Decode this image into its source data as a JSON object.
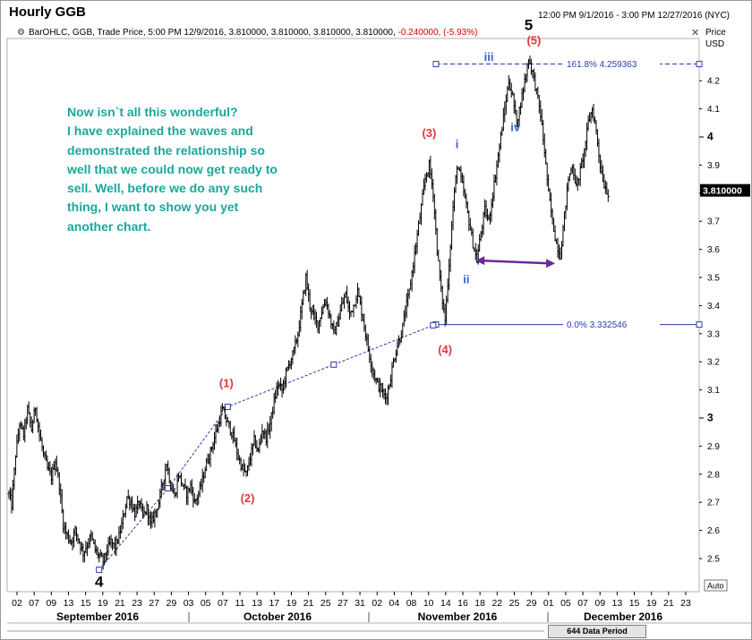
{
  "header": {
    "title": "Hourly GGB",
    "date_range": "12:00 PM 9/1/2016 - 3:00 PM 12/27/2016 (NYC)",
    "settings_icon": "gear-icon",
    "close_icon": "close-icon",
    "info_text": "BarOHLC, GGB, Trade Price, 5:00 PM 12/9/2016, 3.810000, 3.810000, 3.810000, 3.810000,",
    "info_change": "-0.240000, (-5.93%)",
    "price_axis_title": "Price",
    "price_axis_unit": "USD"
  },
  "commentary": {
    "lines": [
      "Now isn`t all this wonderful?",
      "I have explained the waves and",
      "demonstrated the relationship so",
      "well that we could now get ready to",
      "sell.  Well, before we do any such",
      "thing, I want to show you yet",
      "another chart."
    ]
  },
  "footer": {
    "data_period": "644 Data Period",
    "auto_label": "Auto"
  },
  "colors": {
    "bars": "#000000",
    "wave_red": "#e0383b",
    "wave_blue": "#3a5fc8",
    "fib": "#2b3bb0",
    "commentary": "#1aa89a",
    "arrow": "#6a2a9a"
  },
  "chart_data": {
    "type": "bar",
    "subtype": "OHLC",
    "symbol": "GGB",
    "timeframe": "Hourly",
    "ylim": [
      2.36,
      4.33
    ],
    "y_ticks": [
      2.5,
      2.6,
      2.7,
      2.8,
      2.9,
      3,
      3.1,
      3.2,
      3.3,
      3.4,
      3.5,
      3.6,
      3.7,
      3.8,
      3.9,
      4,
      4.1,
      4.2
    ],
    "y_tick_labels": [
      "2.5",
      "2.6",
      "2.7",
      "2.8",
      "2.9",
      "3",
      "3.1",
      "3.2",
      "3.3",
      "3.4",
      "3.5",
      "3.6",
      "3.7",
      "3.8",
      "3.9",
      "4",
      "4.1",
      "4.2"
    ],
    "x_day_labels": [
      "02",
      "07",
      "09",
      "13",
      "15",
      "19",
      "21",
      "23",
      "27",
      "29",
      "03",
      "05",
      "07",
      "11",
      "13",
      "17",
      "19",
      "21",
      "25",
      "27",
      "31",
      "02",
      "04",
      "08",
      "10",
      "14",
      "16",
      "18",
      "22",
      "25",
      "29",
      "01",
      "05",
      "07",
      "09",
      "13",
      "15",
      "19",
      "21",
      "23"
    ],
    "x_month_labels": [
      "September 2016",
      "October 2016",
      "November 2016",
      "December 2016"
    ],
    "last_price": 3.81,
    "last_price_label": "3.810000",
    "price_path": [
      [
        0,
        2.73
      ],
      [
        2,
        2.69
      ],
      [
        5,
        2.87
      ],
      [
        8,
        2.98
      ],
      [
        11,
        2.94
      ],
      [
        14,
        3.03
      ],
      [
        17,
        2.96
      ],
      [
        20,
        3.04
      ],
      [
        23,
        2.94
      ],
      [
        26,
        2.87
      ],
      [
        29,
        2.82
      ],
      [
        32,
        2.79
      ],
      [
        35,
        2.85
      ],
      [
        38,
        2.76
      ],
      [
        41,
        2.62
      ],
      [
        44,
        2.58
      ],
      [
        47,
        2.56
      ],
      [
        50,
        2.6
      ],
      [
        53,
        2.56
      ],
      [
        56,
        2.52
      ],
      [
        59,
        2.55
      ],
      [
        62,
        2.58
      ],
      [
        65,
        2.53
      ],
      [
        68,
        2.51
      ],
      [
        71,
        2.49
      ],
      [
        74,
        2.53
      ],
      [
        77,
        2.56
      ],
      [
        80,
        2.54
      ],
      [
        83,
        2.58
      ],
      [
        86,
        2.64
      ],
      [
        89,
        2.72
      ],
      [
        92,
        2.7
      ],
      [
        95,
        2.66
      ],
      [
        98,
        2.7
      ],
      [
        101,
        2.65
      ],
      [
        104,
        2.68
      ],
      [
        107,
        2.62
      ],
      [
        110,
        2.66
      ],
      [
        113,
        2.7
      ],
      [
        116,
        2.77
      ],
      [
        119,
        2.84
      ],
      [
        122,
        2.76
      ],
      [
        125,
        2.72
      ],
      [
        128,
        2.8
      ],
      [
        131,
        2.76
      ],
      [
        134,
        2.73
      ],
      [
        137,
        2.76
      ],
      [
        140,
        2.7
      ],
      [
        143,
        2.73
      ],
      [
        146,
        2.78
      ],
      [
        149,
        2.84
      ],
      [
        152,
        2.88
      ],
      [
        155,
        2.93
      ],
      [
        158,
        2.98
      ],
      [
        161,
        3.03
      ],
      [
        164,
        2.99
      ],
      [
        167,
        2.96
      ],
      [
        170,
        2.92
      ],
      [
        173,
        2.86
      ],
      [
        176,
        2.82
      ],
      [
        179,
        2.8
      ],
      [
        182,
        2.86
      ],
      [
        185,
        2.92
      ],
      [
        188,
        2.88
      ],
      [
        191,
        2.96
      ],
      [
        194,
        2.93
      ],
      [
        197,
        2.98
      ],
      [
        200,
        3.06
      ],
      [
        203,
        3.12
      ],
      [
        206,
        3.1
      ],
      [
        209,
        3.16
      ],
      [
        212,
        3.2
      ],
      [
        215,
        3.24
      ],
      [
        218,
        3.3
      ],
      [
        221,
        3.4
      ],
      [
        224,
        3.5
      ],
      [
        227,
        3.4
      ],
      [
        230,
        3.36
      ],
      [
        233,
        3.33
      ],
      [
        236,
        3.38
      ],
      [
        239,
        3.42
      ],
      [
        242,
        3.36
      ],
      [
        245,
        3.3
      ],
      [
        248,
        3.34
      ],
      [
        251,
        3.4
      ],
      [
        254,
        3.44
      ],
      [
        257,
        3.37
      ],
      [
        260,
        3.4
      ],
      [
        263,
        3.45
      ],
      [
        266,
        3.38
      ],
      [
        269,
        3.3
      ],
      [
        272,
        3.22
      ],
      [
        275,
        3.16
      ],
      [
        278,
        3.12
      ],
      [
        281,
        3.1
      ],
      [
        284,
        3.07
      ],
      [
        287,
        3.12
      ],
      [
        290,
        3.2
      ],
      [
        293,
        3.26
      ],
      [
        296,
        3.3
      ],
      [
        299,
        3.38
      ],
      [
        302,
        3.45
      ],
      [
        305,
        3.55
      ],
      [
        308,
        3.65
      ],
      [
        311,
        3.75
      ],
      [
        314,
        3.85
      ],
      [
        317,
        3.9
      ],
      [
        320,
        3.8
      ],
      [
        323,
        3.6
      ],
      [
        326,
        3.45
      ],
      [
        329,
        3.35
      ],
      [
        332,
        3.55
      ],
      [
        335,
        3.75
      ],
      [
        338,
        3.9
      ],
      [
        341,
        3.85
      ],
      [
        344,
        3.78
      ],
      [
        347,
        3.7
      ],
      [
        350,
        3.62
      ],
      [
        353,
        3.56
      ],
      [
        356,
        3.66
      ],
      [
        359,
        3.74
      ],
      [
        362,
        3.7
      ],
      [
        365,
        3.8
      ],
      [
        368,
        3.9
      ],
      [
        371,
        4.0
      ],
      [
        374,
        4.1
      ],
      [
        377,
        4.2
      ],
      [
        380,
        4.14
      ],
      [
        383,
        4.05
      ],
      [
        386,
        4.12
      ],
      [
        389,
        4.2
      ],
      [
        392,
        4.28
      ],
      [
        395,
        4.23
      ],
      [
        398,
        4.16
      ],
      [
        401,
        4.08
      ],
      [
        404,
        3.95
      ],
      [
        407,
        3.8
      ],
      [
        410,
        3.7
      ],
      [
        413,
        3.62
      ],
      [
        416,
        3.58
      ],
      [
        419,
        3.72
      ],
      [
        422,
        3.85
      ],
      [
        425,
        3.9
      ],
      [
        428,
        3.82
      ],
      [
        431,
        3.88
      ],
      [
        434,
        3.95
      ],
      [
        437,
        4.05
      ],
      [
        440,
        4.1
      ],
      [
        443,
        4.02
      ],
      [
        446,
        3.9
      ],
      [
        449,
        3.83
      ],
      [
        452,
        3.8
      ]
    ],
    "annotations": {
      "wave_labels": [
        {
          "text": "4",
          "x": 68,
          "y": 2.4,
          "color": "black",
          "size": "large"
        },
        {
          "text": "(1)",
          "x": 164,
          "y": 3.11,
          "color": "red"
        },
        {
          "text": "(2)",
          "x": 180,
          "y": 2.7,
          "color": "red"
        },
        {
          "text": "(3)",
          "x": 317,
          "y": 4.0,
          "color": "red"
        },
        {
          "text": "(4)",
          "x": 329,
          "y": 3.23,
          "color": "red"
        },
        {
          "text": "i",
          "x": 338,
          "y": 3.96,
          "color": "blue"
        },
        {
          "text": "ii",
          "x": 345,
          "y": 3.48,
          "color": "blue"
        },
        {
          "text": "iii",
          "x": 362,
          "y": 4.27,
          "color": "blue"
        },
        {
          "text": "iv",
          "x": 382,
          "y": 4.02,
          "color": "blue"
        },
        {
          "text": "5",
          "x": 392,
          "y": 4.38,
          "color": "black",
          "size": "large"
        },
        {
          "text": "(5)",
          "x": 396,
          "y": 4.33,
          "color": "red"
        }
      ],
      "fib_levels": [
        {
          "label": "161.8% 4.259363",
          "value": 4.259363
        },
        {
          "label": "0.0% 3.332546",
          "value": 3.332546
        }
      ],
      "trendline": [
        [
          68,
          2.46
        ],
        [
          120,
          2.75
        ],
        [
          165,
          3.04
        ],
        [
          245,
          3.19
        ],
        [
          320,
          3.33
        ]
      ],
      "arrow": {
        "x_from": 352,
        "x_to": 412,
        "y_from": 3.56,
        "y_to": 3.55,
        "double_headed": true
      }
    }
  }
}
